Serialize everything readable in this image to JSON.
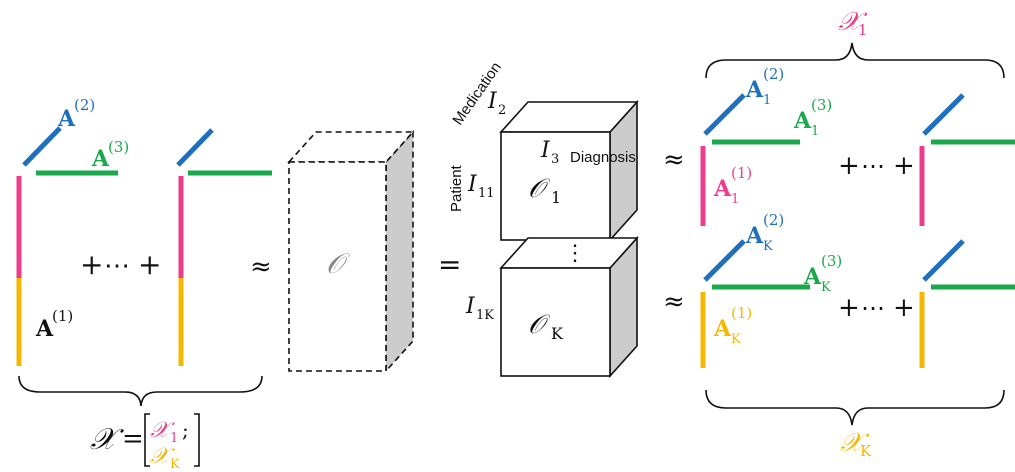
{
  "colors": {
    "mode1": "#ee3c8c",
    "mode2": "#1f6fbf",
    "mode3": "#19a84b",
    "mode1_alt": "#f5b800",
    "pink": "#ee3c8c",
    "gold": "#f5b800",
    "ink": "#111111",
    "gray": "#888888"
  },
  "icons": {
    "ellipsis": "⋯",
    "approx": "≈",
    "vdots": "⋮"
  },
  "left": {
    "label_A2": "A",
    "sup_A2": "(2)",
    "label_A3": "A",
    "sup_A3": "(3)",
    "label_A1": "A",
    "sup_A1": "(1)",
    "plus": "+",
    "bottom_X": "𝒳",
    "bottom_eq": "=",
    "bottom_X1": "𝒳",
    "bottom_X1_sub": "1",
    "bottom_semicolon": ";",
    "bottom_XK": "𝒳",
    "bottom_XK_sub": "K"
  },
  "middle": {
    "O_label": "𝒪",
    "equals": "=",
    "axis_medication": "Medication",
    "axis_patient": "Patient",
    "axis_diagnosis": "Diagnosis",
    "I2": "I",
    "I2_sub": "2",
    "I3": "I",
    "I3_sub": "3",
    "I11": "I",
    "I11_sub": "11",
    "I1K": "I",
    "I1K_sub": "1K",
    "O1": "𝒪",
    "O1_sub": "1",
    "OK": "𝒪",
    "OK_sub": "K"
  },
  "right": {
    "X1": "𝒳",
    "X1_sub": "1",
    "XK": "𝒳",
    "XK_sub": "K",
    "A": "A",
    "sub_1": "1",
    "sub_K": "K",
    "sup_1": "(1)",
    "sup_2": "(2)",
    "sup_3": "(3)",
    "plus": "+"
  }
}
